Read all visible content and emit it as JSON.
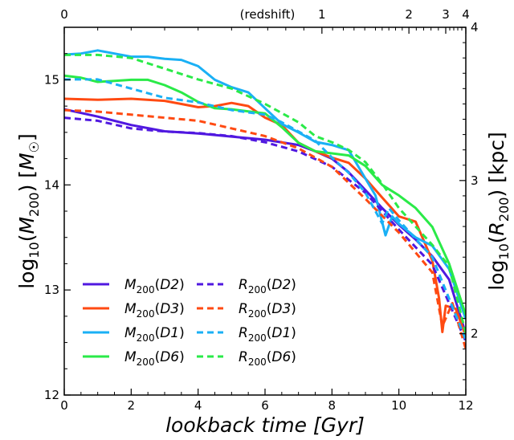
{
  "chart_data": {
    "type": "line",
    "xlabel": "lookback time  [Gyr]",
    "ylabel_left": "log10(M200) [M☉]",
    "ylabel_right": "log10(R200) [kpc]",
    "top_axis_label": "(redshift)",
    "xlim": [
      0,
      12
    ],
    "ylim_left": [
      12,
      15.5
    ],
    "ylim_right": [
      1.6,
      4
    ],
    "x_ticks": [
      0,
      2,
      4,
      6,
      8,
      10,
      12
    ],
    "y_left_ticks": [
      12,
      13,
      14,
      15
    ],
    "y_right_ticks": [
      2,
      3,
      4
    ],
    "top_ticks": [
      {
        "label": "0",
        "z": 0
      },
      {
        "label": "1",
        "z": 1
      },
      {
        "label": "2",
        "z": 2
      },
      {
        "label": "3",
        "z": 3
      },
      {
        "label": "4",
        "z": 4
      }
    ],
    "legend_position": "lower-left",
    "series": [
      {
        "key": "M_D2",
        "name": "M200(D2)",
        "axis": "left",
        "color": "#5018e0",
        "dash": false,
        "x": [
          0,
          1,
          2,
          3,
          4,
          5,
          6,
          7,
          7.5,
          8,
          8.5,
          9,
          9.5,
          10,
          10.5,
          11,
          11.5,
          12
        ],
        "y": [
          14.72,
          14.65,
          14.57,
          14.51,
          14.49,
          14.46,
          14.43,
          14.38,
          14.32,
          14.25,
          14.12,
          13.95,
          13.78,
          13.62,
          13.48,
          13.32,
          13.1,
          12.58
        ]
      },
      {
        "key": "M_D3",
        "name": "M200(D3)",
        "axis": "left",
        "color": "#ff4a12",
        "dash": false,
        "x": [
          0,
          1,
          2,
          3,
          3.5,
          4,
          4.5,
          5,
          5.5,
          6,
          6.5,
          7,
          7.5,
          8,
          8.5,
          9,
          9.5,
          10,
          10.5,
          11,
          11.2,
          11.3,
          11.4,
          11.7,
          12
        ],
        "y": [
          14.82,
          14.81,
          14.82,
          14.8,
          14.77,
          14.74,
          14.75,
          14.78,
          14.75,
          14.64,
          14.57,
          14.4,
          14.32,
          14.26,
          14.21,
          14.06,
          13.88,
          13.7,
          13.65,
          13.28,
          12.92,
          12.6,
          12.85,
          12.82,
          12.56
        ]
      },
      {
        "key": "M_D1",
        "name": "M200(D1)",
        "axis": "left",
        "color": "#1ab0f5",
        "dash": false,
        "x": [
          0,
          0.5,
          1,
          1.5,
          2,
          2.5,
          3,
          3.5,
          4,
          4.5,
          5,
          5.5,
          6,
          6.5,
          7,
          7.5,
          8,
          8.5,
          9,
          9.3,
          9.6,
          9.8,
          10,
          10.5,
          11,
          11.5,
          12
        ],
        "y": [
          15.24,
          15.25,
          15.28,
          15.25,
          15.22,
          15.22,
          15.2,
          15.19,
          15.13,
          15.0,
          14.93,
          14.88,
          14.73,
          14.58,
          14.5,
          14.41,
          14.38,
          14.33,
          14.06,
          13.9,
          13.52,
          13.7,
          13.63,
          13.5,
          13.42,
          13.2,
          12.72
        ]
      },
      {
        "key": "M_D6",
        "name": "M200(D6)",
        "axis": "left",
        "color": "#2aea48",
        "dash": false,
        "x": [
          0,
          0.5,
          1,
          1.5,
          2,
          2.5,
          3,
          3.5,
          4,
          4.5,
          5,
          5.5,
          6,
          6.5,
          7,
          7.5,
          8,
          8.5,
          9,
          9.5,
          10,
          10.5,
          11,
          11.5,
          12
        ],
        "y": [
          15.04,
          15.02,
          14.98,
          14.99,
          15.0,
          15.0,
          14.95,
          14.88,
          14.79,
          14.73,
          14.72,
          14.7,
          14.68,
          14.55,
          14.4,
          14.32,
          14.3,
          14.28,
          14.18,
          14.0,
          13.9,
          13.78,
          13.6,
          13.25,
          12.76
        ]
      },
      {
        "key": "R_D2",
        "name": "R200(D2)",
        "axis": "right",
        "color": "#5018e0",
        "dash": true,
        "x": [
          0,
          1,
          2,
          3,
          4,
          5,
          6,
          7,
          8,
          9,
          10,
          11,
          12
        ],
        "y": [
          3.41,
          3.39,
          3.34,
          3.32,
          3.31,
          3.29,
          3.25,
          3.19,
          3.09,
          2.92,
          2.68,
          2.45,
          1.95
        ]
      },
      {
        "key": "R_D3",
        "name": "R200(D3)",
        "axis": "right",
        "color": "#ff4a12",
        "dash": true,
        "x": [
          0,
          1,
          2,
          3,
          4,
          5,
          6,
          7,
          8,
          9,
          10,
          11,
          11.3,
          11.6,
          12
        ],
        "y": [
          3.46,
          3.45,
          3.43,
          3.41,
          3.39,
          3.34,
          3.29,
          3.21,
          3.09,
          2.88,
          2.66,
          2.4,
          2.05,
          2.2,
          1.9
        ]
      },
      {
        "key": "R_D1",
        "name": "R200(D1)",
        "axis": "right",
        "color": "#1ab0f5",
        "dash": true,
        "x": [
          0,
          1,
          2,
          3,
          4,
          5,
          6,
          6.5,
          7,
          7.5,
          8,
          8.5,
          9,
          9.5,
          9.7,
          10,
          11,
          12
        ],
        "y": [
          3.66,
          3.66,
          3.6,
          3.54,
          3.51,
          3.46,
          3.43,
          3.38,
          3.32,
          3.26,
          3.15,
          3.05,
          2.92,
          2.72,
          2.82,
          2.74,
          2.5,
          1.96
        ]
      },
      {
        "key": "R_D6",
        "name": "R200(D6)",
        "axis": "right",
        "color": "#2aea48",
        "dash": true,
        "x": [
          0,
          1,
          2,
          3,
          4,
          5,
          6,
          7,
          7.5,
          8,
          8.5,
          9,
          9.5,
          10,
          10.5,
          11,
          11.5,
          12
        ],
        "y": [
          3.82,
          3.82,
          3.8,
          3.73,
          3.66,
          3.6,
          3.5,
          3.38,
          3.29,
          3.25,
          3.2,
          3.12,
          2.98,
          2.82,
          2.7,
          2.58,
          2.44,
          2.0
        ]
      }
    ]
  }
}
